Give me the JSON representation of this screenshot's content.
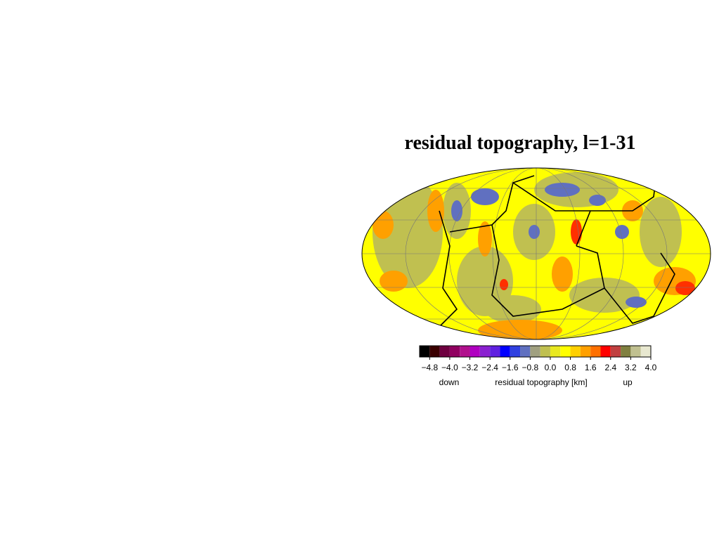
{
  "title": "residual topography, l=1-31",
  "colorbar": {
    "lim": [
      -5.2,
      4.0
    ],
    "bins": [
      -5.2,
      -4.8,
      -4.4,
      -4.0,
      -3.6,
      -3.2,
      -2.8,
      -2.4,
      -2.0,
      -1.6,
      -1.2,
      -0.8,
      -0.4,
      0,
      0.4,
      0.8,
      1.2,
      1.6,
      2.0,
      2.4,
      2.8,
      3.2,
      3.6,
      4.0
    ],
    "colors": [
      "#000000",
      "#3a0000",
      "#6e0040",
      "#900060",
      "#b0108c",
      "#b000c0",
      "#8a20d0",
      "#6020e0",
      "#0000ff",
      "#3040e0",
      "#6070c0",
      "#a0a080",
      "#c0c050",
      "#e8e820",
      "#ffff00",
      "#ffd000",
      "#ffa000",
      "#ff7000",
      "#ff0000",
      "#c04040",
      "#808040",
      "#c0c090",
      "#e8e8d0"
    ],
    "ticks": [
      {
        "value": -4.8,
        "label": "−4.8"
      },
      {
        "value": -4.0,
        "label": "−4.0"
      },
      {
        "value": -3.2,
        "label": "−3.2"
      },
      {
        "value": -2.4,
        "label": "−2.4"
      },
      {
        "value": -1.6,
        "label": "−1.6"
      },
      {
        "value": -0.8,
        "label": "−0.8"
      },
      {
        "value": 0,
        "label": "0.0"
      },
      0.8,
      1.6,
      2.4,
      3.2,
      {
        "value": 4.0,
        "label": "4.0"
      }
    ],
    "label": "residual topography [km]",
    "low_label": "down",
    "high_label": "up"
  }
}
